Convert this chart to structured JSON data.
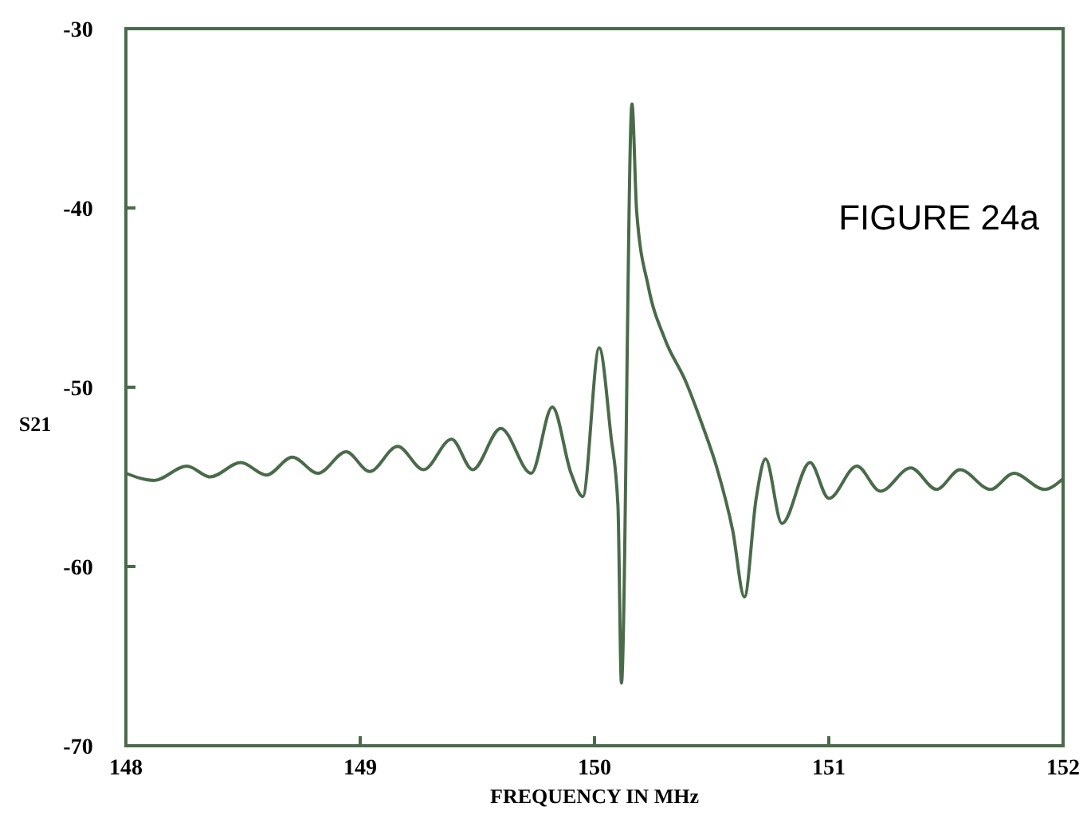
{
  "chart_data": {
    "type": "line",
    "xlabel": "FREQUENCY IN MHz",
    "ylabel": "S21",
    "annotations": [
      "FIGURE 24a"
    ],
    "xlim": [
      148,
      152
    ],
    "ylim": [
      -70,
      -30
    ],
    "xticks": [
      148,
      149,
      150,
      151,
      152
    ],
    "yticks": [
      -70,
      -60,
      -50,
      -40,
      -30
    ],
    "grid": false,
    "marker": "none",
    "line_style": "solid",
    "series": [
      {
        "color": "#4a6b4a",
        "x": [
          148,
          148.12,
          148.26,
          148.36,
          148.49,
          148.6,
          148.71,
          148.82,
          148.94,
          149.04,
          149.16,
          149.27,
          149.39,
          149.48,
          149.6,
          149.73,
          149.82,
          149.9,
          149.95,
          150.02,
          150.07,
          150.1,
          150.115,
          150.16,
          150.18,
          150.23,
          150.3,
          150.39,
          150.46,
          150.52,
          150.59,
          150.64,
          150.69,
          150.73,
          150.8,
          150.92,
          151,
          151.12,
          151.22,
          151.35,
          151.46,
          151.56,
          151.69,
          151.79,
          151.92,
          152
        ],
        "values": [
          -54.8,
          -55.2,
          -54.4,
          -55,
          -54.2,
          -54.9,
          -53.9,
          -54.8,
          -53.6,
          -54.7,
          -53.3,
          -54.6,
          -52.9,
          -54.6,
          -52.3,
          -54.8,
          -51.1,
          -54.8,
          -56.1,
          -47.8,
          -52.7,
          -56.6,
          -66.5,
          -34.2,
          -40.2,
          -44.4,
          -47.3,
          -49.7,
          -52.1,
          -54.4,
          -58,
          -61.7,
          -56.2,
          -54,
          -57.6,
          -54.2,
          -56.2,
          -54.4,
          -55.8,
          -54.5,
          -55.7,
          -54.6,
          -55.7,
          -54.8,
          -55.7,
          -55.1
        ]
      }
    ]
  }
}
